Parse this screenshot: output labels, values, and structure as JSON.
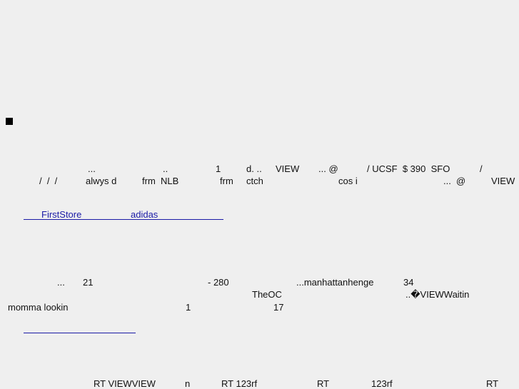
{
  "rows": [
    {
      "fragments": [
        "...",
        "..",
        "1",
        "d. ..",
        "VIEW",
        "... @",
        "/ UCSF  $ 390  SFO",
        "/"
      ]
    },
    {
      "fragments": [
        "/  /  /",
        "alwys d",
        "frm  NLB",
        "frm",
        "ctch",
        "cos i",
        "...  @",
        "VIEW"
      ]
    },
    {
      "fragments": [
        "...",
        "21",
        "- 280",
        "...manhattanhenge",
        "34"
      ]
    },
    {
      "fragments": [
        "TheOC",
        "..�VIEWWaitin"
      ]
    },
    {
      "fragments": [
        "momma lookin",
        "1",
        "17"
      ]
    },
    {
      "fragments": [
        "RT VIEWVIEW",
        "n",
        "RT 123rf",
        "RT",
        "123rf",
        "RT"
      ]
    }
  ],
  "links": [
    "FirstStore",
    "adidas"
  ]
}
